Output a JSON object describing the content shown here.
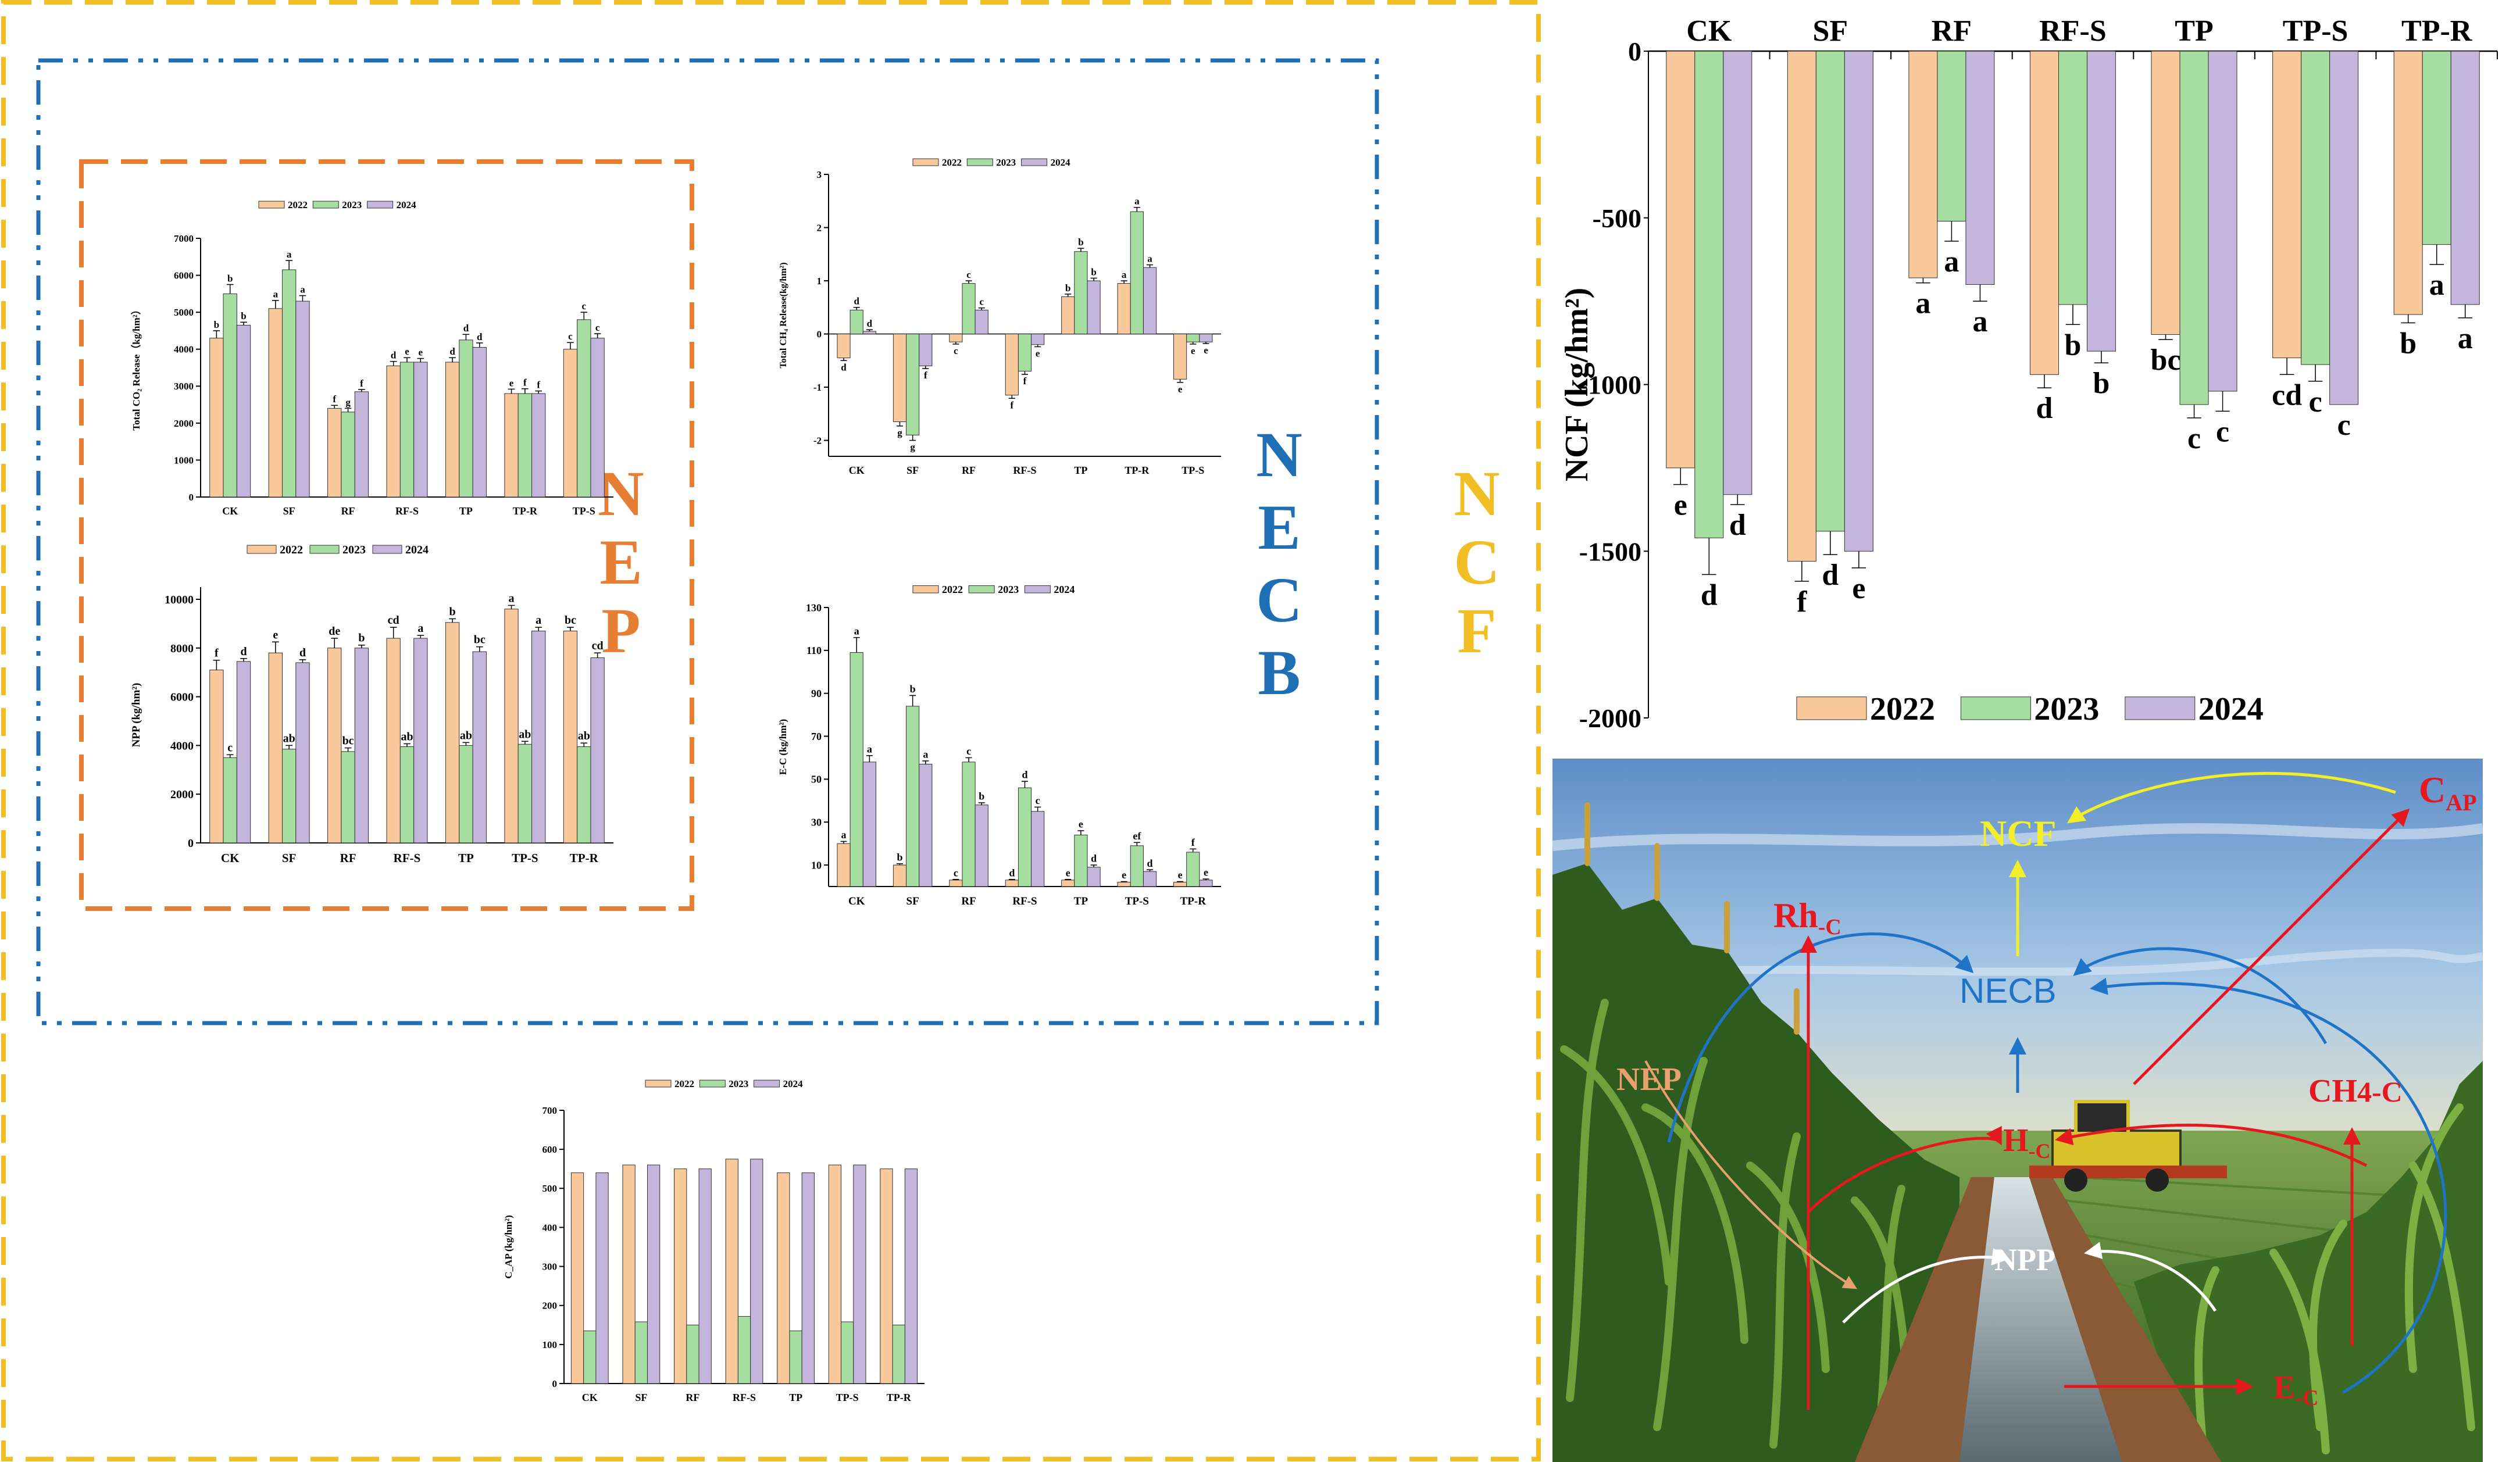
{
  "frame_labels": {
    "nep": [
      "N",
      "E",
      "P"
    ],
    "necb": [
      "N",
      "E",
      "C",
      "B"
    ],
    "ncf": [
      "N",
      "C",
      "F"
    ]
  },
  "colors": {
    "y2022": "#F9C99C",
    "y2023": "#A6DDA0",
    "y2024": "#C4B5DD",
    "nep_frame": "#E67E34",
    "necb_frame": "#1F6FB4",
    "ncf_frame": "#F2BE26",
    "nep_text": "#E67E34",
    "necb_text": "#1F6FB4",
    "ncf_text": "#F2BE26"
  },
  "legend_years": [
    "2022",
    "2023",
    "2024"
  ],
  "charts": [
    {
      "id": "co2",
      "type": "bar",
      "ylabel": "Total CO₂ Release（kg/hm²）",
      "ylim": [
        0,
        7000
      ],
      "yticks": [
        0,
        1000,
        2000,
        3000,
        4000,
        5000,
        6000,
        7000
      ],
      "categories": [
        "CK",
        "SF",
        "RF",
        "RF-S",
        "TP",
        "TP-R",
        "TP-S"
      ],
      "series": [
        {
          "name": "2022",
          "values": [
            4300,
            5100,
            2400,
            3550,
            3650,
            2800,
            4000
          ],
          "err": [
            200,
            220,
            80,
            120,
            120,
            120,
            180
          ],
          "letters": [
            "b",
            "a",
            "f",
            "d",
            "d",
            "e",
            "c"
          ]
        },
        {
          "name": "2023",
          "values": [
            5500,
            6150,
            2300,
            3650,
            4250,
            2800,
            4800
          ],
          "err": [
            250,
            250,
            100,
            120,
            150,
            130,
            200
          ],
          "letters": [
            "b",
            "a",
            "g",
            "e",
            "d",
            "f",
            "c"
          ]
        },
        {
          "name": "2024",
          "values": [
            4650,
            5300,
            2850,
            3650,
            4050,
            2800,
            4300
          ],
          "err": [
            80,
            150,
            60,
            100,
            120,
            70,
            120
          ],
          "letters": [
            "b",
            "a",
            "f",
            "e",
            "d",
            "f",
            "c"
          ]
        }
      ]
    },
    {
      "id": "ch4",
      "type": "bar",
      "ylabel": "Total CH₄ Release(kg/hm²)",
      "ylim": [
        -2.3,
        3
      ],
      "yticks": [
        -2,
        -1,
        0,
        1,
        2,
        3
      ],
      "categories": [
        "CK",
        "SF",
        "RF",
        "RF-S",
        "TP",
        "TP-R",
        "TP-S"
      ],
      "series": [
        {
          "name": "2022",
          "values": [
            -0.45,
            -1.65,
            -0.15,
            -1.15,
            0.7,
            0.95,
            -0.85
          ],
          "err": [
            0.05,
            0.08,
            0.04,
            0.06,
            0.05,
            0.05,
            0.06
          ],
          "letters": [
            "d",
            "g",
            "c",
            "f",
            "b",
            "a",
            "e"
          ]
        },
        {
          "name": "2023",
          "values": [
            0.45,
            -1.9,
            0.95,
            -0.7,
            1.55,
            2.3,
            -0.15
          ],
          "err": [
            0.05,
            0.1,
            0.05,
            0.06,
            0.06,
            0.08,
            0.04
          ],
          "letters": [
            "d",
            "g",
            "c",
            "f",
            "b",
            "a",
            "e"
          ]
        },
        {
          "name": "2024",
          "values": [
            0.05,
            -0.6,
            0.45,
            -0.2,
            1.0,
            1.25,
            -0.15
          ],
          "err": [
            0.03,
            0.05,
            0.04,
            0.04,
            0.05,
            0.05,
            0.03
          ],
          "letters": [
            "d",
            "f",
            "c",
            "e",
            "b",
            "a",
            "e"
          ]
        }
      ]
    },
    {
      "id": "npp",
      "type": "bar",
      "ylabel": "NPP (kg/hm²)",
      "ylim": [
        0,
        10500
      ],
      "yticks": [
        0,
        2000,
        4000,
        6000,
        8000,
        10000
      ],
      "categories": [
        "CK",
        "SF",
        "RF",
        "RF-S",
        "TP",
        "TP-S",
        "TP-R"
      ],
      "series": [
        {
          "name": "2022",
          "values": [
            7100,
            7800,
            8000,
            8400,
            9050,
            9600,
            8700
          ],
          "err": [
            400,
            450,
            400,
            450,
            150,
            150,
            150
          ],
          "letters": [
            "f",
            "e",
            "de",
            "cd",
            "b",
            "a",
            "bc"
          ]
        },
        {
          "name": "2023",
          "values": [
            3500,
            3850,
            3750,
            3950,
            4000,
            4050,
            3950
          ],
          "err": [
            120,
            150,
            150,
            120,
            120,
            120,
            150
          ],
          "letters": [
            "c",
            "ab",
            "bc",
            "ab",
            "ab",
            "ab",
            "ab"
          ]
        },
        {
          "name": "2024",
          "values": [
            7450,
            7400,
            8000,
            8400,
            7850,
            8700,
            7600
          ],
          "err": [
            120,
            120,
            120,
            120,
            200,
            150,
            200
          ],
          "letters": [
            "d",
            "d",
            "b",
            "a",
            "bc",
            "a",
            "cd"
          ]
        }
      ]
    },
    {
      "id": "ec",
      "type": "bar",
      "ylabel": "E-C (kg/hm²)",
      "ylim": [
        0,
        130
      ],
      "yticks": [
        10,
        30,
        50,
        70,
        90,
        110,
        130
      ],
      "categories": [
        "CK",
        "SF",
        "RF",
        "RF-S",
        "TP",
        "TP-S",
        "TP-R"
      ],
      "series": [
        {
          "name": "2022",
          "values": [
            20,
            10,
            3,
            3,
            3,
            2,
            2
          ],
          "err": [
            1,
            0.6,
            0.3,
            0.3,
            0.3,
            0.3,
            0.3
          ],
          "letters": [
            "a",
            "b",
            "c",
            "d",
            "e",
            "e",
            "e"
          ]
        },
        {
          "name": "2023",
          "values": [
            109,
            84,
            58,
            46,
            24,
            19,
            16
          ],
          "err": [
            7,
            5,
            2,
            3,
            2,
            1.5,
            1.5
          ],
          "letters": [
            "a",
            "b",
            "c",
            "d",
            "e",
            "ef",
            "f"
          ]
        },
        {
          "name": "2024",
          "values": [
            58,
            57,
            38,
            35,
            9,
            7,
            3
          ],
          "err": [
            3,
            1.5,
            1,
            2,
            1,
            0.8,
            0.5
          ],
          "letters": [
            "a",
            "a",
            "b",
            "c",
            "d",
            "d",
            "e"
          ]
        }
      ]
    },
    {
      "id": "cap",
      "type": "bar",
      "ylabel": "C_AP (kg/hm²)",
      "ylim": [
        0,
        700
      ],
      "yticks": [
        0,
        100,
        200,
        300,
        400,
        500,
        600,
        700
      ],
      "categories": [
        "CK",
        "SF",
        "RF",
        "RF-S",
        "TP",
        "TP-S",
        "TP-R"
      ],
      "series": [
        {
          "name": "2022",
          "values": [
            540,
            560,
            550,
            575,
            540,
            560,
            550
          ],
          "err": [
            0,
            0,
            0,
            0,
            0,
            0,
            0
          ],
          "letters": [
            "",
            "",
            "",
            "",
            "",
            "",
            ""
          ]
        },
        {
          "name": "2023",
          "values": [
            135,
            158,
            150,
            172,
            135,
            158,
            150
          ],
          "err": [
            0,
            0,
            0,
            0,
            0,
            0,
            0
          ],
          "letters": [
            "",
            "",
            "",
            "",
            "",
            "",
            ""
          ]
        },
        {
          "name": "2024",
          "values": [
            540,
            560,
            550,
            575,
            540,
            560,
            550
          ],
          "err": [
            0,
            0,
            0,
            0,
            0,
            0,
            0
          ],
          "letters": [
            "",
            "",
            "",
            "",
            "",
            "",
            ""
          ]
        }
      ]
    },
    {
      "id": "ncf",
      "type": "bar",
      "ylabel": "NCF (kg/hm²)",
      "ylim": [
        -2000,
        0
      ],
      "yticks": [
        0,
        -500,
        -1000,
        -1500,
        -2000
      ],
      "categories": [
        "CK",
        "SF",
        "RF",
        "RF-S",
        "TP",
        "TP-S",
        "TP-R"
      ],
      "series": [
        {
          "name": "2022",
          "values": [
            -1250,
            -1530,
            -680,
            -970,
            -850,
            -920,
            -790
          ],
          "err": [
            50,
            60,
            15,
            40,
            15,
            50,
            25
          ],
          "letters": [
            "e",
            "f",
            "a",
            "d",
            "bc",
            "cd",
            "b"
          ]
        },
        {
          "name": "2023",
          "values": [
            -1460,
            -1440,
            -510,
            -760,
            -1060,
            -940,
            -580
          ],
          "err": [
            110,
            70,
            60,
            60,
            40,
            50,
            60
          ],
          "letters": [
            "d",
            "d",
            "a",
            "b",
            "c",
            "c",
            "a"
          ]
        },
        {
          "name": "2024",
          "values": [
            -1330,
            -1500,
            -700,
            -900,
            -1020,
            -1060,
            -760
          ],
          "err": [
            30,
            50,
            50,
            35,
            60,
            0,
            40
          ],
          "letters": [
            "d",
            "e",
            "a",
            "b",
            "c",
            "c",
            "a"
          ]
        }
      ]
    }
  ],
  "diagram": {
    "ncf": "NCF",
    "cap_main": "C",
    "cap_sub": "AP",
    "rh_main": "Rh",
    "rh_sub": "-C",
    "necb": "NECB",
    "nep": "NEP",
    "hc_main": "H",
    "hc_sub": "-C",
    "ch4_main": "CH",
    "ch4_sub": "4-C",
    "npp": "NPP",
    "ec_main": "E",
    "ec_sub": "-C"
  }
}
